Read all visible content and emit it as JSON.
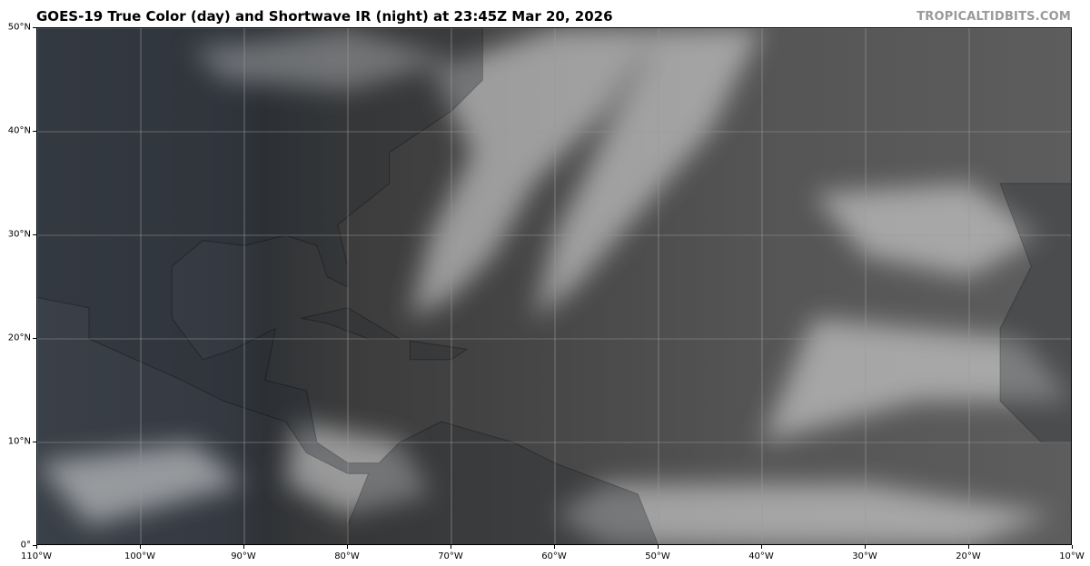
{
  "header": {
    "title": "GOES-19 True Color (day) and Shortwave IR (night) at 23:45Z Mar 20, 2026",
    "watermark": "TROPICALTIDBITS.COM"
  },
  "map": {
    "projection": "equirectangular",
    "lon_range": [
      -110,
      -10
    ],
    "lat_range": [
      0,
      50
    ],
    "grid": true,
    "grid_step_degrees": 10,
    "x_ticks": [
      "110°W",
      "100°W",
      "90°W",
      "80°W",
      "70°W",
      "60°W",
      "50°W",
      "40°W",
      "30°W",
      "20°W",
      "10°W"
    ],
    "y_ticks": [
      "50°N",
      "40°N",
      "30°N",
      "20°N",
      "10°N",
      "0°"
    ],
    "colors": {
      "grid": "#9a9a9a",
      "coastline": "#000000",
      "clouds": "#e8e8e8"
    }
  }
}
